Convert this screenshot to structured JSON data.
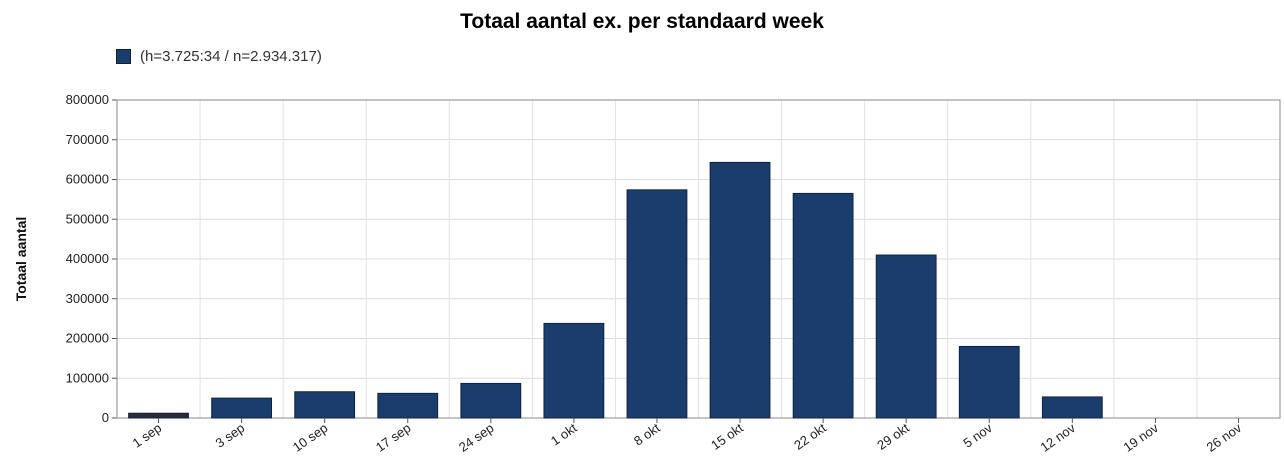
{
  "chart_data": {
    "type": "bar",
    "title": "Totaal aantal ex. per standaard week",
    "ylabel": "Totaal aantal",
    "xlabel": "",
    "ylim": [
      0,
      800000
    ],
    "yticks": [
      0,
      100000,
      200000,
      300000,
      400000,
      500000,
      600000,
      700000,
      800000
    ],
    "grid": true,
    "legend_position": "top-left",
    "series": [
      {
        "name": "(h=3.725:34 / n=2.934.317)",
        "color": "#1b3d6e",
        "values": [
          12000,
          50000,
          66000,
          62000,
          87000,
          238000,
          574000,
          643000,
          565000,
          410000,
          180000,
          53000,
          0,
          0
        ]
      }
    ],
    "categories": [
      "1 sep",
      "3 sep",
      "10 sep",
      "17 sep",
      "24 sep",
      "1 okt",
      "8 okt",
      "15 okt",
      "22 okt",
      "29 okt",
      "5 nov",
      "12 nov",
      "19 nov",
      "26 nov"
    ],
    "bar_colors": [
      "#2b2b3a",
      "#1b3d6e",
      "#1b3d6e",
      "#1b3d6e",
      "#1b3d6e",
      "#1b3d6e",
      "#1b3d6e",
      "#1b3d6e",
      "#1b3d6e",
      "#1b3d6e",
      "#1b3d6e",
      "#1b3d6e",
      "#1b3d6e",
      "#1b3d6e"
    ]
  }
}
